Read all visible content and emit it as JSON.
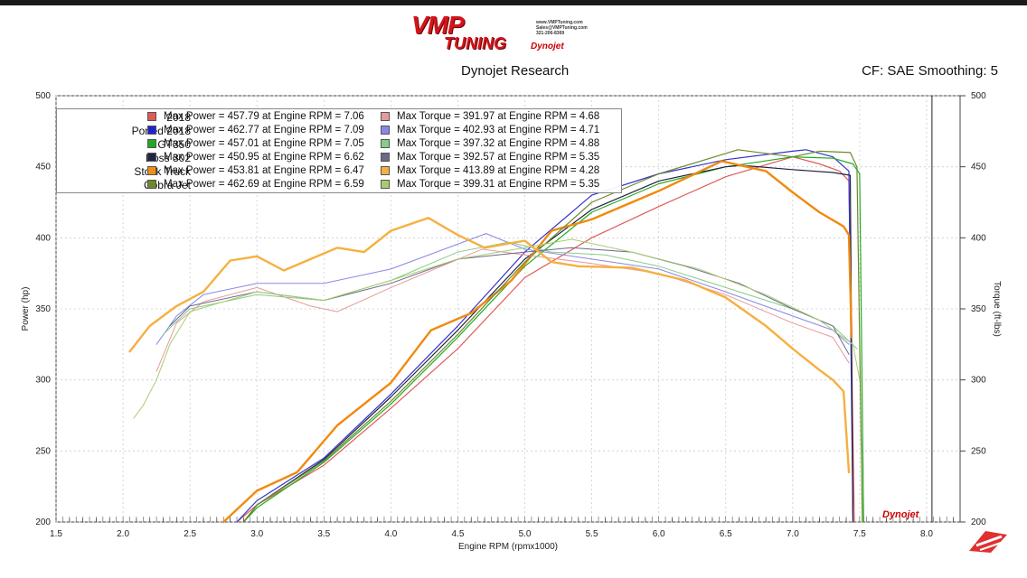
{
  "header": {
    "logo_main": "VMP",
    "logo_sub": "TUNING",
    "logo_contact": [
      "www.VMPTuning.com",
      "Sales@VMPTuning.com",
      "321-206-8369"
    ],
    "logo_dynojet": "Dynojet",
    "title": "Dynojet Research",
    "cf": "CF: SAE Smoothing: 5"
  },
  "colors": {
    "2018": "#e05a5a",
    "Ported 2018": "#2222cc",
    "GT350": "#22aa22",
    "Boss 302": "#222244",
    "Stock Truck": "#f0a020",
    "Cobra Jet": "#6b8a2a"
  },
  "legend": [
    {
      "name": "2018",
      "power_label": "Max Power = 457.79 at Engine RPM = 7.06",
      "torque_label": "Max Torque = 391.97 at Engine RPM = 4.68",
      "color": "#e05a5a",
      "torque_color": "#e89a9a"
    },
    {
      "name": "Ported 2018",
      "power_label": "Max Power = 462.77 at Engine RPM = 7.09",
      "torque_label": "Max Torque = 402.93 at Engine RPM = 4.71",
      "color": "#2222cc",
      "torque_color": "#8888e8"
    },
    {
      "name": "GT350",
      "power_label": "Max Power = 457.01 at Engine RPM = 7.05",
      "torque_label": "Max Torque = 397.32 at Engine RPM = 4.88",
      "color": "#22aa22",
      "torque_color": "#88cc88"
    },
    {
      "name": "Boss 302",
      "power_label": "Max Power = 450.95 at Engine RPM = 6.62",
      "torque_label": "Max Torque = 392.57 at Engine RPM = 5.35",
      "color": "#222244",
      "torque_color": "#6a6a8a"
    },
    {
      "name": "Stock Truck",
      "power_label": "Max Power = 453.81 at Engine RPM = 6.47",
      "torque_label": "Max Torque = 413.89 at Engine RPM = 4.28",
      "color": "#f09010",
      "torque_color": "#f5b040"
    },
    {
      "name": "Cobra Jet",
      "power_label": "Max Power = 462.69 at Engine RPM = 6.59",
      "torque_label": "Max Torque = 399.31 at Engine RPM = 5.35",
      "color": "#6b8a2a",
      "torque_color": "#aacc70"
    }
  ],
  "chart_data": {
    "type": "line",
    "xlabel": "Engine RPM (rpmx1000)",
    "ylabel": "Power (hp)",
    "y2label": "Torque (ft-lbs)",
    "xlim": [
      1.5,
      8.25
    ],
    "ylim": [
      200,
      500
    ],
    "y2lim": [
      200,
      500
    ],
    "xticks": [
      1.5,
      2.0,
      2.5,
      3.0,
      3.5,
      4.0,
      4.5,
      5.0,
      5.5,
      6.0,
      6.5,
      7.0,
      7.5,
      8.0
    ],
    "xtick_labels": [
      "1.5",
      "2.0",
      "2.5",
      "3.0",
      "3.5",
      "4.0",
      "4.5",
      "5.0",
      "5.5",
      "6.0",
      "6.5",
      "7.0",
      "7.5",
      "8.0"
    ],
    "yticks": [
      200,
      250,
      300,
      350,
      400,
      450,
      500
    ],
    "ytick_labels": [
      "200",
      "250",
      "300",
      "350",
      "400",
      "450",
      "500"
    ],
    "grid": true,
    "legend_position": "top-left",
    "series": [
      {
        "name": "2018",
        "kind": "power",
        "color": "#e05a5a",
        "width": 1.2,
        "x": [
          2.85,
          3.0,
          3.5,
          4.0,
          4.5,
          5.0,
          5.5,
          6.0,
          6.5,
          7.0,
          7.2,
          7.35,
          7.42,
          7.46
        ],
        "y": [
          200,
          212,
          240,
          280,
          322,
          372,
          400,
          422,
          443,
          457,
          452,
          447,
          440,
          200
        ]
      },
      {
        "name": "Ported 2018",
        "kind": "power",
        "color": "#3333cc",
        "width": 1.2,
        "x": [
          2.85,
          3.0,
          3.5,
          4.0,
          4.5,
          5.0,
          5.5,
          6.0,
          6.5,
          7.0,
          7.1,
          7.3,
          7.42,
          7.45
        ],
        "y": [
          200,
          215,
          245,
          290,
          338,
          390,
          430,
          445,
          455,
          461,
          462,
          457,
          447,
          200
        ]
      },
      {
        "name": "GT350",
        "kind": "power",
        "color": "#22aa22",
        "width": 1.2,
        "x": [
          2.9,
          3.0,
          3.5,
          4.0,
          4.5,
          5.0,
          5.5,
          6.0,
          6.5,
          7.0,
          7.3,
          7.45,
          7.5,
          7.53
        ],
        "y": [
          200,
          210,
          242,
          283,
          330,
          380,
          418,
          438,
          450,
          457,
          456,
          452,
          445,
          200
        ]
      },
      {
        "name": "Boss 302",
        "kind": "power",
        "color": "#222244",
        "width": 1.2,
        "x": [
          2.9,
          3.0,
          3.5,
          4.0,
          4.5,
          5.0,
          5.5,
          6.0,
          6.5,
          6.62,
          7.0,
          7.3,
          7.43,
          7.45
        ],
        "y": [
          200,
          212,
          244,
          288,
          335,
          385,
          420,
          440,
          450,
          451,
          448,
          446,
          444,
          200
        ]
      },
      {
        "name": "Stock Truck",
        "kind": "power",
        "color": "#f08a10",
        "width": 2.4,
        "x": [
          2.75,
          3.0,
          3.3,
          3.6,
          4.0,
          4.3,
          4.6,
          4.9,
          5.2,
          5.5,
          6.0,
          6.47,
          6.8,
          7.0,
          7.2,
          7.38,
          7.42,
          7.44
        ],
        "y": [
          200,
          222,
          235,
          268,
          298,
          335,
          347,
          370,
          405,
          413,
          433,
          454,
          447,
          432,
          418,
          408,
          402,
          330
        ]
      },
      {
        "name": "Cobra Jet",
        "kind": "power",
        "color": "#6b8a2a",
        "width": 1.2,
        "x": [
          2.9,
          3.0,
          3.5,
          4.0,
          4.5,
          5.0,
          5.5,
          6.0,
          6.59,
          7.0,
          7.2,
          7.43,
          7.48,
          7.52
        ],
        "y": [
          200,
          212,
          243,
          285,
          332,
          383,
          425,
          445,
          462,
          457,
          461,
          460,
          450,
          200
        ]
      },
      {
        "name": "2018",
        "kind": "torque",
        "color": "#e89a9a",
        "width": 1.0,
        "x": [
          2.25,
          2.4,
          2.6,
          3.0,
          3.4,
          3.6,
          4.0,
          4.68,
          5.0,
          5.5,
          6.0,
          6.5,
          7.0,
          7.3,
          7.42
        ],
        "y": [
          306,
          340,
          355,
          365,
          352,
          348,
          365,
          392,
          388,
          382,
          375,
          360,
          340,
          330,
          312
        ]
      },
      {
        "name": "Ported 2018",
        "kind": "torque",
        "color": "#8888e8",
        "width": 1.0,
        "x": [
          2.25,
          2.4,
          2.6,
          3.0,
          3.5,
          4.0,
          4.71,
          5.0,
          5.5,
          6.0,
          6.5,
          7.0,
          7.3,
          7.42
        ],
        "y": [
          325,
          345,
          360,
          368,
          368,
          378,
          403,
          392,
          385,
          378,
          362,
          345,
          335,
          325
        ]
      },
      {
        "name": "GT350",
        "kind": "torque",
        "color": "#88cc88",
        "width": 1.0,
        "x": [
          2.3,
          2.5,
          3.0,
          3.5,
          4.0,
          4.5,
          4.88,
          5.2,
          5.6,
          6.0,
          6.5,
          7.0,
          7.3,
          7.48
        ],
        "y": [
          332,
          350,
          360,
          356,
          370,
          390,
          397,
          390,
          388,
          380,
          365,
          350,
          338,
          322
        ]
      },
      {
        "name": "Boss 302",
        "kind": "torque",
        "color": "#6a6a8a",
        "width": 1.0,
        "x": [
          2.35,
          2.5,
          3.0,
          3.5,
          4.0,
          4.5,
          5.0,
          5.35,
          5.8,
          6.2,
          6.6,
          7.0,
          7.3,
          7.42
        ],
        "y": [
          338,
          352,
          362,
          356,
          368,
          385,
          390,
          393,
          390,
          380,
          368,
          350,
          338,
          318
        ]
      },
      {
        "name": "Stock Truck",
        "kind": "torque",
        "color": "#f5b040",
        "width": 2.4,
        "x": [
          2.05,
          2.2,
          2.4,
          2.6,
          2.8,
          3.0,
          3.2,
          3.4,
          3.6,
          3.8,
          4.0,
          4.28,
          4.5,
          4.7,
          5.0,
          5.2,
          5.4,
          5.8,
          6.2,
          6.5,
          6.8,
          7.0,
          7.2,
          7.3,
          7.38,
          7.42
        ],
        "y": [
          320,
          338,
          352,
          362,
          384,
          387,
          377,
          385,
          393,
          390,
          405,
          414,
          402,
          393,
          398,
          383,
          380,
          379,
          370,
          358,
          338,
          322,
          307,
          300,
          292,
          235
        ]
      },
      {
        "name": "Cobra Jet",
        "kind": "torque",
        "color": "#aacc70",
        "width": 1.0,
        "x": [
          2.08,
          2.15,
          2.25,
          2.35,
          2.5,
          3.0,
          3.5,
          4.0,
          4.5,
          5.0,
          5.35,
          5.8,
          6.3,
          6.8,
          7.2,
          7.45,
          7.5
        ],
        "y": [
          273,
          282,
          300,
          325,
          348,
          362,
          356,
          370,
          385,
          393,
          399,
          390,
          378,
          360,
          342,
          325,
          300
        ]
      }
    ]
  }
}
